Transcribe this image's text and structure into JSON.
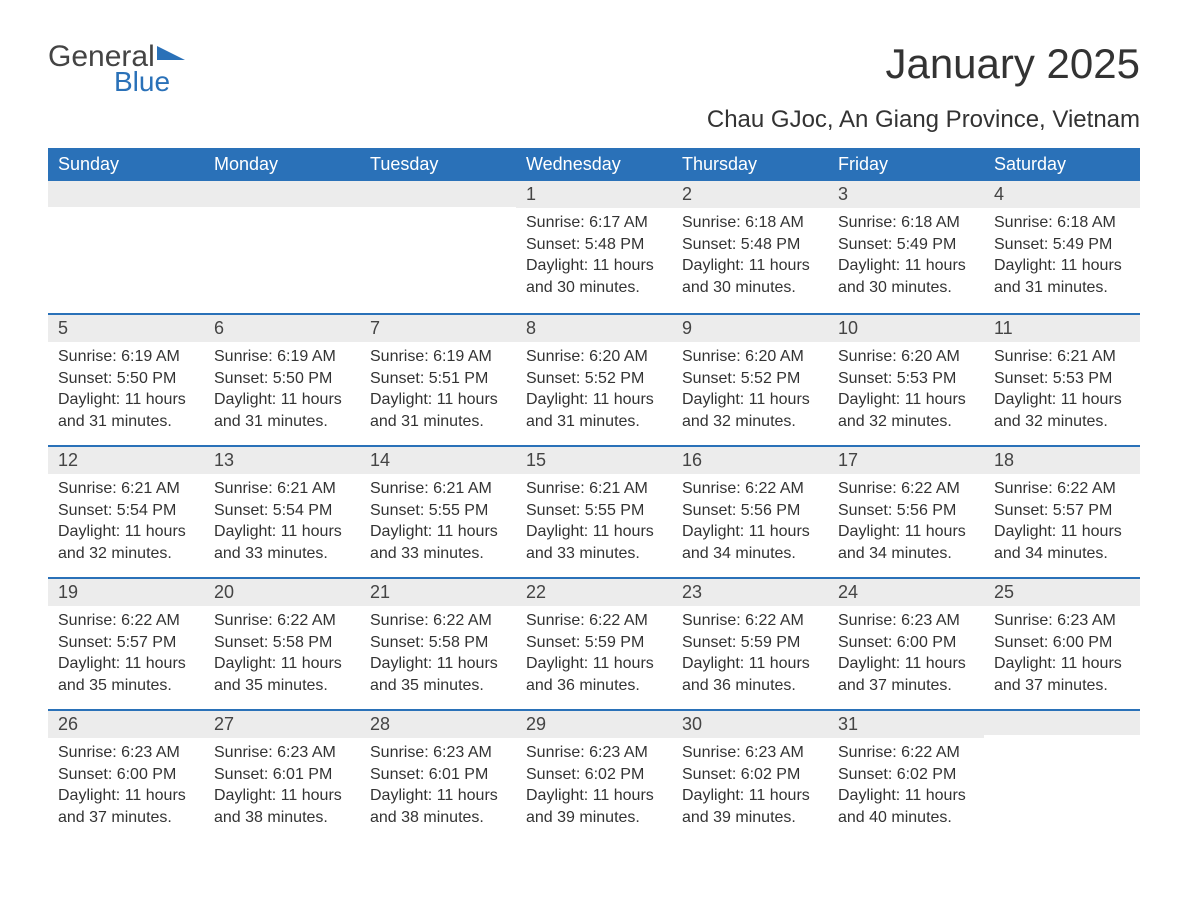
{
  "logo": {
    "text1": "General",
    "text2": "Blue"
  },
  "title": "January 2025",
  "location": "Chau GJoc, An Giang Province, Vietnam",
  "colors": {
    "header_bg": "#2a71b8",
    "header_text": "#ffffff",
    "daynum_bg": "#ececec",
    "border_top": "#2a71b8",
    "body_bg": "#ffffff",
    "text": "#333333"
  },
  "day_headers": [
    "Sunday",
    "Monday",
    "Tuesday",
    "Wednesday",
    "Thursday",
    "Friday",
    "Saturday"
  ],
  "weeks": [
    [
      {
        "n": "",
        "sr": "",
        "ss": "",
        "dl": ""
      },
      {
        "n": "",
        "sr": "",
        "ss": "",
        "dl": ""
      },
      {
        "n": "",
        "sr": "",
        "ss": "",
        "dl": ""
      },
      {
        "n": "1",
        "sr": "Sunrise: 6:17 AM",
        "ss": "Sunset: 5:48 PM",
        "dl": "Daylight: 11 hours and 30 minutes."
      },
      {
        "n": "2",
        "sr": "Sunrise: 6:18 AM",
        "ss": "Sunset: 5:48 PM",
        "dl": "Daylight: 11 hours and 30 minutes."
      },
      {
        "n": "3",
        "sr": "Sunrise: 6:18 AM",
        "ss": "Sunset: 5:49 PM",
        "dl": "Daylight: 11 hours and 30 minutes."
      },
      {
        "n": "4",
        "sr": "Sunrise: 6:18 AM",
        "ss": "Sunset: 5:49 PM",
        "dl": "Daylight: 11 hours and 31 minutes."
      }
    ],
    [
      {
        "n": "5",
        "sr": "Sunrise: 6:19 AM",
        "ss": "Sunset: 5:50 PM",
        "dl": "Daylight: 11 hours and 31 minutes."
      },
      {
        "n": "6",
        "sr": "Sunrise: 6:19 AM",
        "ss": "Sunset: 5:50 PM",
        "dl": "Daylight: 11 hours and 31 minutes."
      },
      {
        "n": "7",
        "sr": "Sunrise: 6:19 AM",
        "ss": "Sunset: 5:51 PM",
        "dl": "Daylight: 11 hours and 31 minutes."
      },
      {
        "n": "8",
        "sr": "Sunrise: 6:20 AM",
        "ss": "Sunset: 5:52 PM",
        "dl": "Daylight: 11 hours and 31 minutes."
      },
      {
        "n": "9",
        "sr": "Sunrise: 6:20 AM",
        "ss": "Sunset: 5:52 PM",
        "dl": "Daylight: 11 hours and 32 minutes."
      },
      {
        "n": "10",
        "sr": "Sunrise: 6:20 AM",
        "ss": "Sunset: 5:53 PM",
        "dl": "Daylight: 11 hours and 32 minutes."
      },
      {
        "n": "11",
        "sr": "Sunrise: 6:21 AM",
        "ss": "Sunset: 5:53 PM",
        "dl": "Daylight: 11 hours and 32 minutes."
      }
    ],
    [
      {
        "n": "12",
        "sr": "Sunrise: 6:21 AM",
        "ss": "Sunset: 5:54 PM",
        "dl": "Daylight: 11 hours and 32 minutes."
      },
      {
        "n": "13",
        "sr": "Sunrise: 6:21 AM",
        "ss": "Sunset: 5:54 PM",
        "dl": "Daylight: 11 hours and 33 minutes."
      },
      {
        "n": "14",
        "sr": "Sunrise: 6:21 AM",
        "ss": "Sunset: 5:55 PM",
        "dl": "Daylight: 11 hours and 33 minutes."
      },
      {
        "n": "15",
        "sr": "Sunrise: 6:21 AM",
        "ss": "Sunset: 5:55 PM",
        "dl": "Daylight: 11 hours and 33 minutes."
      },
      {
        "n": "16",
        "sr": "Sunrise: 6:22 AM",
        "ss": "Sunset: 5:56 PM",
        "dl": "Daylight: 11 hours and 34 minutes."
      },
      {
        "n": "17",
        "sr": "Sunrise: 6:22 AM",
        "ss": "Sunset: 5:56 PM",
        "dl": "Daylight: 11 hours and 34 minutes."
      },
      {
        "n": "18",
        "sr": "Sunrise: 6:22 AM",
        "ss": "Sunset: 5:57 PM",
        "dl": "Daylight: 11 hours and 34 minutes."
      }
    ],
    [
      {
        "n": "19",
        "sr": "Sunrise: 6:22 AM",
        "ss": "Sunset: 5:57 PM",
        "dl": "Daylight: 11 hours and 35 minutes."
      },
      {
        "n": "20",
        "sr": "Sunrise: 6:22 AM",
        "ss": "Sunset: 5:58 PM",
        "dl": "Daylight: 11 hours and 35 minutes."
      },
      {
        "n": "21",
        "sr": "Sunrise: 6:22 AM",
        "ss": "Sunset: 5:58 PM",
        "dl": "Daylight: 11 hours and 35 minutes."
      },
      {
        "n": "22",
        "sr": "Sunrise: 6:22 AM",
        "ss": "Sunset: 5:59 PM",
        "dl": "Daylight: 11 hours and 36 minutes."
      },
      {
        "n": "23",
        "sr": "Sunrise: 6:22 AM",
        "ss": "Sunset: 5:59 PM",
        "dl": "Daylight: 11 hours and 36 minutes."
      },
      {
        "n": "24",
        "sr": "Sunrise: 6:23 AM",
        "ss": "Sunset: 6:00 PM",
        "dl": "Daylight: 11 hours and 37 minutes."
      },
      {
        "n": "25",
        "sr": "Sunrise: 6:23 AM",
        "ss": "Sunset: 6:00 PM",
        "dl": "Daylight: 11 hours and 37 minutes."
      }
    ],
    [
      {
        "n": "26",
        "sr": "Sunrise: 6:23 AM",
        "ss": "Sunset: 6:00 PM",
        "dl": "Daylight: 11 hours and 37 minutes."
      },
      {
        "n": "27",
        "sr": "Sunrise: 6:23 AM",
        "ss": "Sunset: 6:01 PM",
        "dl": "Daylight: 11 hours and 38 minutes."
      },
      {
        "n": "28",
        "sr": "Sunrise: 6:23 AM",
        "ss": "Sunset: 6:01 PM",
        "dl": "Daylight: 11 hours and 38 minutes."
      },
      {
        "n": "29",
        "sr": "Sunrise: 6:23 AM",
        "ss": "Sunset: 6:02 PM",
        "dl": "Daylight: 11 hours and 39 minutes."
      },
      {
        "n": "30",
        "sr": "Sunrise: 6:23 AM",
        "ss": "Sunset: 6:02 PM",
        "dl": "Daylight: 11 hours and 39 minutes."
      },
      {
        "n": "31",
        "sr": "Sunrise: 6:22 AM",
        "ss": "Sunset: 6:02 PM",
        "dl": "Daylight: 11 hours and 40 minutes."
      },
      {
        "n": "",
        "sr": "",
        "ss": "",
        "dl": ""
      }
    ]
  ]
}
